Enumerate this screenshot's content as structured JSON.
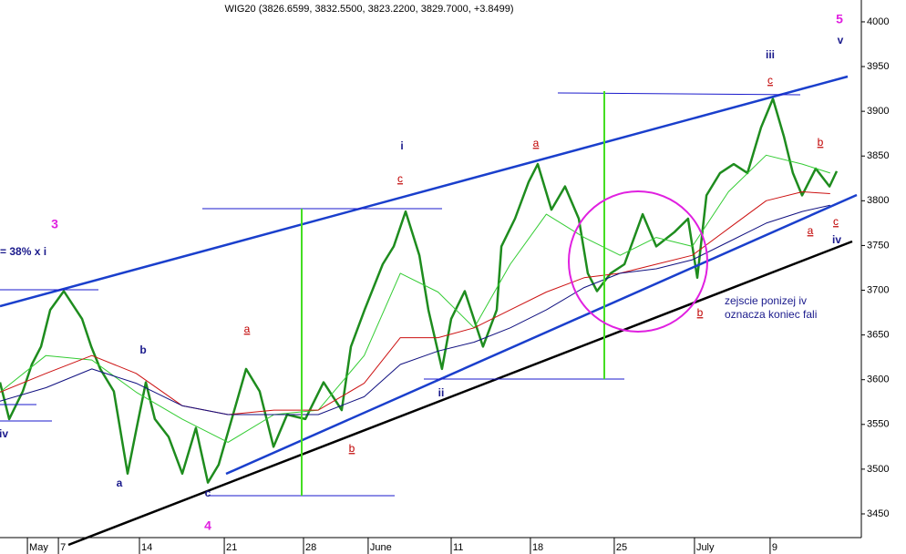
{
  "chart_data": {
    "type": "line",
    "title": "WIG20 (3826.6599, 3832.5500, 3823.2200, 3829.7000, +3.8499)",
    "xlim": [
      0,
      52.5
    ],
    "xticks": [
      {
        "value": 1.67,
        "label": "May"
      },
      {
        "value": 3.56,
        "label": "7"
      },
      {
        "value": 8.5,
        "label": "14"
      },
      {
        "value": 13.67,
        "label": "21"
      },
      {
        "value": 18.5,
        "label": "28"
      },
      {
        "value": 22.44,
        "label": "June"
      },
      {
        "value": 27.5,
        "label": "11"
      },
      {
        "value": 32.33,
        "label": "18"
      },
      {
        "value": 37.44,
        "label": "25"
      },
      {
        "value": 42.33,
        "label": "July"
      },
      {
        "value": 46.94,
        "label": "9"
      }
    ],
    "ylim": [
      3423.5,
      4024.4
    ],
    "yticks": [
      3450,
      3500,
      3550,
      3600,
      3650,
      3700,
      3750,
      3800,
      3850,
      3900,
      3950,
      4000
    ],
    "series": [
      {
        "name": "WIG20",
        "color": "#1e8c1e",
        "x": [
          0,
          0.56,
          1.39,
          1.94,
          2.5,
          3.06,
          3.89,
          5,
          5.56,
          6.11,
          6.94,
          7.78,
          8.33,
          8.89,
          9.44,
          10.28,
          11.11,
          11.94,
          12.67,
          13.33,
          14.44,
          15,
          15.83,
          16.67,
          17.5,
          18.61,
          19.72,
          20.83,
          21.39,
          22.22,
          23.33,
          24,
          24.72,
          25.56,
          26.11,
          26.94,
          27.5,
          28.33,
          29.44,
          30.28,
          30.56,
          31.39,
          32.22,
          32.78,
          33.61,
          34.44,
          35.28,
          35.83,
          36.39,
          37.22,
          38.06,
          39.17,
          40,
          41.11,
          41.94,
          42.5,
          43.06,
          43.89,
          44.72,
          45.56,
          46.39,
          47.11,
          47.78,
          48.33,
          48.89,
          49.72,
          50.56,
          51
        ],
        "values": [
          3597,
          3556,
          3587,
          3617,
          3637,
          3678,
          3699,
          3668,
          3637,
          3612,
          3587,
          3495,
          3546,
          3597,
          3556,
          3536,
          3495,
          3546,
          3485,
          3505,
          3576,
          3612,
          3587,
          3525,
          3561,
          3556,
          3597,
          3566,
          3637,
          3678,
          3729,
          3749,
          3788,
          3739,
          3678,
          3612,
          3668,
          3699,
          3637,
          3678,
          3749,
          3780,
          3821,
          3841,
          3790,
          3816,
          3780,
          3719,
          3699,
          3719,
          3729,
          3785,
          3749,
          3765,
          3780,
          3714,
          3806,
          3831,
          3841,
          3831,
          3882,
          3914,
          3872,
          3831,
          3806,
          3836,
          3816,
          3833
        ]
      },
      {
        "color": "#33cc33",
        "x": [
          0,
          2.8,
          5.6,
          8.3,
          11.1,
          13.9,
          16.7,
          19.4,
          22.2,
          24.4,
          26.7,
          28.9,
          31.1,
          33.3,
          35.6,
          37.8,
          40,
          42.2,
          44.4,
          46.7,
          48.9,
          50.6
        ],
        "values": [
          3586,
          3627,
          3622,
          3586,
          3556,
          3530,
          3561,
          3566,
          3627,
          3719,
          3698,
          3658,
          3729,
          3785,
          3759,
          3739,
          3759,
          3749,
          3810,
          3851,
          3841,
          3831
        ]
      },
      {
        "color": "#cc1111",
        "x": [
          0,
          2.8,
          5.6,
          8.3,
          11.1,
          13.9,
          16.7,
          19.4,
          22.2,
          24.4,
          26.7,
          28.9,
          31.1,
          33.3,
          35.6,
          37.8,
          40,
          42.2,
          44.4,
          46.7,
          48.9,
          50.6
        ],
        "values": [
          3586,
          3607,
          3627,
          3607,
          3571,
          3561,
          3566,
          3566,
          3596,
          3647,
          3647,
          3658,
          3678,
          3698,
          3714,
          3719,
          3729,
          3739,
          3769,
          3800,
          3810,
          3808
        ]
      },
      {
        "color": "#101080",
        "x": [
          0,
          2.8,
          5.6,
          8.3,
          11.1,
          13.9,
          16.7,
          19.4,
          22.2,
          24.4,
          26.7,
          28.9,
          31.1,
          33.3,
          35.6,
          37.8,
          40,
          42.2,
          44.4,
          46.7,
          48.9,
          50.6
        ],
        "values": [
          3576,
          3591,
          3612,
          3596,
          3571,
          3561,
          3561,
          3561,
          3581,
          3617,
          3632,
          3642,
          3658,
          3678,
          3703,
          3719,
          3724,
          3734,
          3754,
          3775,
          3788,
          3795
        ]
      }
    ],
    "annotations": [
      "3",
      "= 38% x i",
      "iv",
      "a",
      "b",
      "c",
      "4",
      "a",
      "b",
      "i",
      "c",
      "ii",
      "a",
      "iii",
      "c",
      "5",
      "v",
      "b",
      "a",
      "c",
      "iv",
      "b",
      "zejscie ponizej iv",
      "oznacza koniec fali"
    ]
  }
}
